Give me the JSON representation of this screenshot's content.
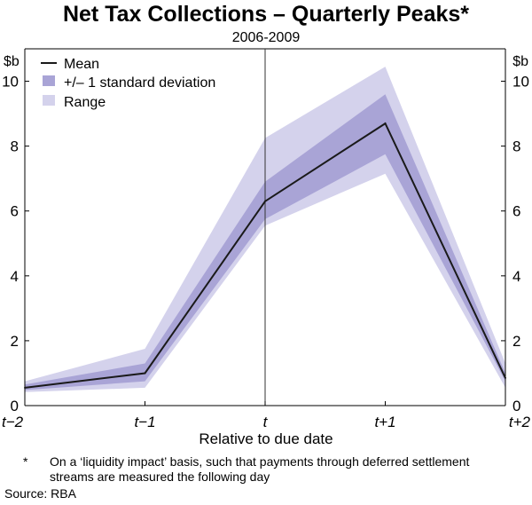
{
  "title": "Net Tax Collections – Quarterly Peaks*",
  "subtitle": "2006-2009",
  "chart_data": {
    "type": "area",
    "title": "Net Tax Collections – Quarterly Peaks*",
    "subtitle": "2006-2009",
    "xlabel": "Relative to due date",
    "ylabel_left": "$b",
    "ylabel_right": "$b",
    "categories": [
      "t−2",
      "t−1",
      "t",
      "t+1",
      "t+2"
    ],
    "ylim": [
      0,
      11
    ],
    "yticks": [
      0,
      2,
      4,
      6,
      8,
      10
    ],
    "event_marker": "t",
    "series": [
      {
        "name": "Mean",
        "kind": "line",
        "values": [
          0.55,
          1.0,
          6.3,
          8.7,
          0.85
        ]
      },
      {
        "name": "+/– 1 standard deviation",
        "kind": "band",
        "lower": [
          0.48,
          0.75,
          5.75,
          7.75,
          0.75
        ],
        "upper": [
          0.65,
          1.3,
          6.9,
          9.6,
          1.0
        ]
      },
      {
        "name": "Range",
        "kind": "band",
        "lower": [
          0.42,
          0.55,
          5.55,
          7.15,
          0.55
        ],
        "upper": [
          0.75,
          1.75,
          8.25,
          10.45,
          1.3
        ]
      }
    ],
    "legend": [
      "Mean",
      "+/– 1 standard deviation",
      "Range"
    ],
    "legend_position": "top-left",
    "colors": {
      "mean": "#1a1a1a",
      "sd": "#a9a4d6",
      "range": "#d4d2ec",
      "axis": "#000000"
    }
  },
  "footnote_mark": "*",
  "footnote": "On a ‘liquidity impact’ basis, such that payments through deferred settlement streams are measured the following day",
  "source": "Source: RBA"
}
